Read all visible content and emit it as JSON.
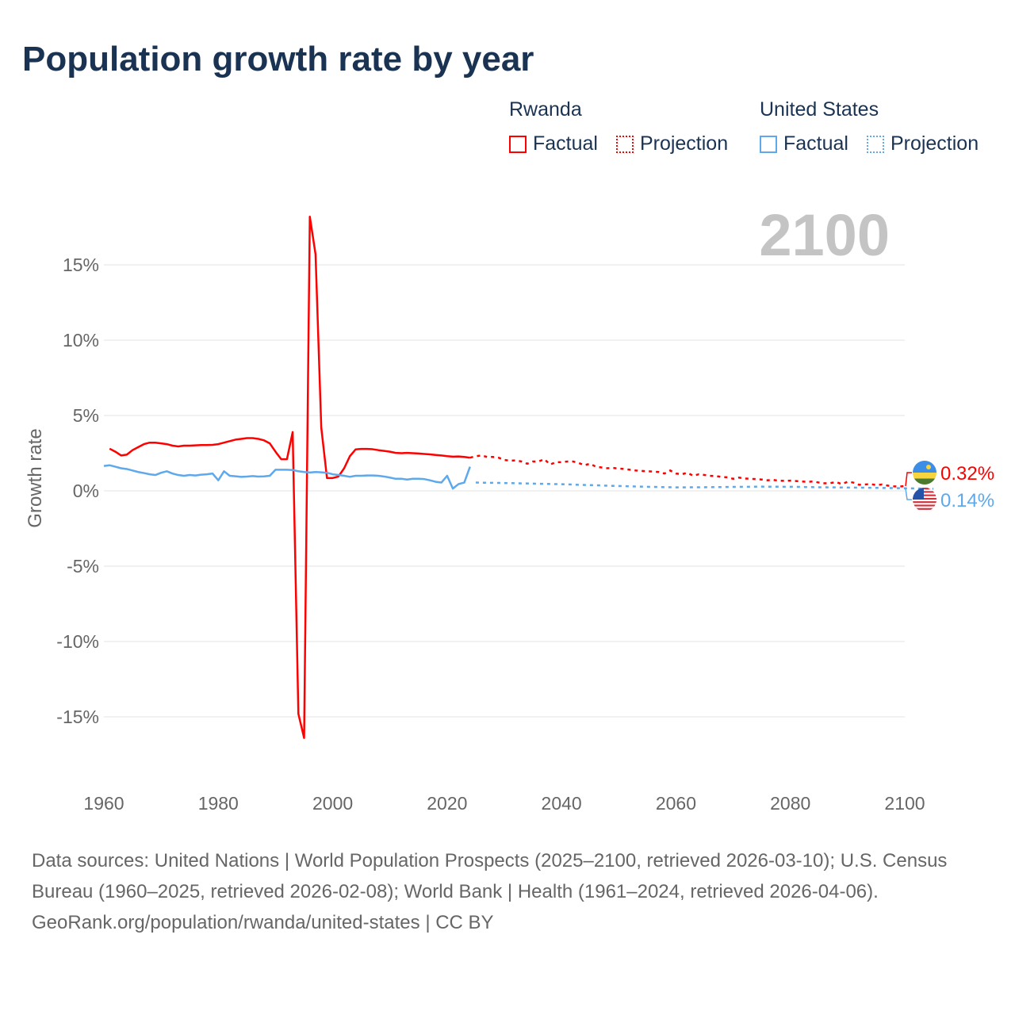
{
  "chart_data": {
    "type": "line",
    "title": "Population growth rate by year",
    "ylabel": "Growth rate",
    "xlabel": "",
    "xlim": [
      1960,
      2100
    ],
    "ylim": [
      -18,
      19
    ],
    "x_ticks": [
      1960,
      1980,
      2000,
      2020,
      2040,
      2060,
      2080,
      2100
    ],
    "x_tick_labels": [
      "1960",
      "1980",
      "2000",
      "2020",
      "2040",
      "2060",
      "2080",
      "2100"
    ],
    "y_ticks": [
      15,
      10,
      5,
      0,
      -5,
      -10,
      -15
    ],
    "y_tick_labels": [
      "15%",
      "10%",
      "5%",
      "0%",
      "-5%",
      "-10%",
      "-15%"
    ],
    "grid": true,
    "current_year_label": "2100",
    "legend": {
      "placement": "top-right",
      "groups": [
        {
          "name": "Rwanda",
          "color": "#ff0000",
          "factual": "Factual",
          "projection": "Projection"
        },
        {
          "name": "United States",
          "color": "#5ea8ec",
          "factual": "Factual",
          "projection": "Projection"
        }
      ]
    },
    "series": [
      {
        "name": "Rwanda",
        "color": "#ff0000",
        "end_label": "0.32%",
        "flag": "rwanda-flag",
        "factual": {
          "x_start": 1961,
          "values": [
            2.8,
            2.6,
            2.35,
            2.4,
            2.7,
            2.9,
            3.1,
            3.2,
            3.2,
            3.15,
            3.1,
            3.0,
            2.95,
            3.0,
            3.0,
            3.02,
            3.04,
            3.04,
            3.05,
            3.1,
            3.2,
            3.3,
            3.4,
            3.45,
            3.5,
            3.5,
            3.45,
            3.35,
            3.15,
            2.6,
            2.1,
            2.1,
            3.9,
            -14.8,
            -16.4,
            18.2,
            15.7,
            4.2,
            0.85,
            0.85,
            0.95,
            1.5,
            2.3,
            2.75,
            2.78,
            2.78,
            2.76,
            2.7,
            2.65,
            2.6,
            2.52,
            2.5,
            2.52,
            2.5,
            2.48,
            2.45,
            2.42,
            2.38,
            2.35,
            2.3,
            2.27,
            2.28,
            2.25,
            2.2
          ]
        },
        "projection": {
          "x_start": 2024,
          "values": [
            2.2,
            2.3,
            2.35,
            2.25,
            2.25,
            2.2,
            2.05,
            2.0,
            2.02,
            1.95,
            1.8,
            1.95,
            1.95,
            2.1,
            1.75,
            1.9,
            1.9,
            1.95,
            1.95,
            1.85,
            1.7,
            1.8,
            1.6,
            1.55,
            1.5,
            1.52,
            1.48,
            1.45,
            1.4,
            1.35,
            1.32,
            1.3,
            1.28,
            1.25,
            1.15,
            1.35,
            1.15,
            1.1,
            1.2,
            1.0,
            1.1,
            1.05,
            1.0,
            0.98,
            0.92,
            0.9,
            0.8,
            0.88,
            0.82,
            0.8,
            0.78,
            0.75,
            0.7,
            0.72,
            0.68,
            0.66,
            0.68,
            0.65,
            0.62,
            0.6,
            0.62,
            0.55,
            0.5,
            0.52,
            0.58,
            0.45,
            0.6,
            0.55,
            0.4,
            0.42,
            0.45,
            0.38,
            0.42,
            0.35,
            0.3,
            0.28,
            0.32
          ]
        }
      },
      {
        "name": "United States",
        "color": "#5ea8ec",
        "end_label": "0.14%",
        "flag": "us-flag",
        "factual": {
          "x_start": 1960,
          "values": [
            1.65,
            1.7,
            1.6,
            1.5,
            1.45,
            1.35,
            1.25,
            1.18,
            1.1,
            1.05,
            1.2,
            1.3,
            1.15,
            1.05,
            1.0,
            1.05,
            1.02,
            1.07,
            1.1,
            1.15,
            0.7,
            1.3,
            1.0,
            0.97,
            0.93,
            0.95,
            0.98,
            0.95,
            0.96,
            1.0,
            1.4,
            1.4,
            1.4,
            1.38,
            1.3,
            1.25,
            1.22,
            1.25,
            1.23,
            1.2,
            1.1,
            1.05,
            1.0,
            0.93,
            1.0,
            1.0,
            1.02,
            1.02,
            1.0,
            0.95,
            0.88,
            0.8,
            0.8,
            0.75,
            0.8,
            0.8,
            0.78,
            0.7,
            0.6,
            0.55,
            1.0,
            0.15,
            0.45,
            0.55,
            1.6
          ]
        },
        "projection": {
          "x_start": 2025,
          "x_step": 5,
          "values": [
            0.55,
            0.52,
            0.48,
            0.44,
            0.38,
            0.32,
            0.27,
            0.23,
            0.24,
            0.26,
            0.28,
            0.27,
            0.24,
            0.22,
            0.2,
            0.17,
            0.14
          ]
        }
      }
    ]
  },
  "footer": {
    "sources": "Data sources: United Nations | World Population Prospects (2025–2100, retrieved 2026-03-10); U.S. Census Bureau (1960–2025, retrieved 2026-02-08); World Bank | Health (1961–2024, retrieved 2026-04-06).",
    "attribution": "GeoRank.org/population/rwanda/united-states | CC BY"
  }
}
